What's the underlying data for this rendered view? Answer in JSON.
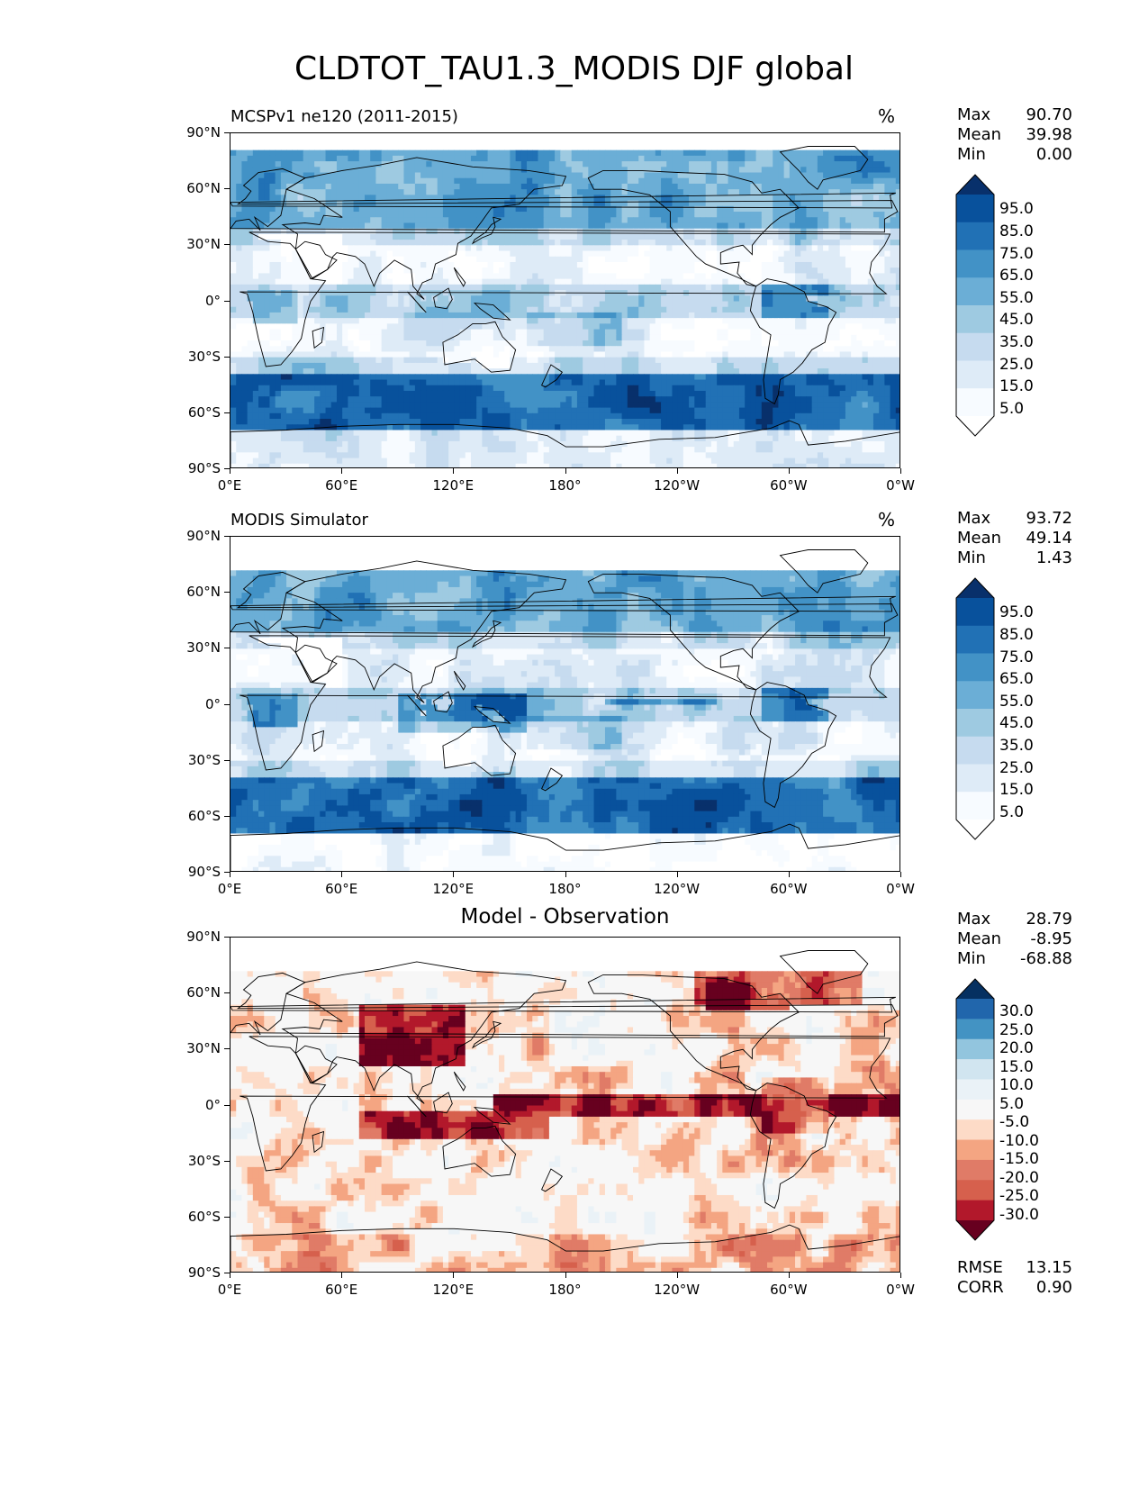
{
  "figure": {
    "title": "CLDTOT_TAU1.3_MODIS DJF global"
  },
  "axes": {
    "lat_ticks": [
      "90°N",
      "60°N",
      "30°N",
      "0°",
      "30°S",
      "60°S",
      "90°S"
    ],
    "lon_ticks": [
      "0°E",
      "60°E",
      "120°E",
      "180°",
      "120°W",
      "60°W",
      "0°W"
    ]
  },
  "panels": [
    {
      "title_left": "MCSPv1 ne120 (2011-2015)",
      "title_right": "%",
      "title_center": "",
      "stats": {
        "max_label": "Max",
        "max": "90.70",
        "mean_label": "Mean",
        "mean": "39.98",
        "min_label": "Min",
        "min": "0.00"
      },
      "colorbar_labels": [
        "95.0",
        "85.0",
        "75.0",
        "65.0",
        "55.0",
        "45.0",
        "35.0",
        "25.0",
        "15.0",
        "5.0"
      ],
      "colormap": "blues"
    },
    {
      "title_left": "MODIS Simulator",
      "title_right": "%",
      "title_center": "",
      "stats": {
        "max_label": "Max",
        "max": "93.72",
        "mean_label": "Mean",
        "mean": "49.14",
        "min_label": "Min",
        "min": "1.43"
      },
      "colorbar_labels": [
        "95.0",
        "85.0",
        "75.0",
        "65.0",
        "55.0",
        "45.0",
        "35.0",
        "25.0",
        "15.0",
        "5.0"
      ],
      "colormap": "blues"
    },
    {
      "title_left": "",
      "title_right": "",
      "title_center": "Model - Observation",
      "stats": {
        "max_label": "Max",
        "max": "28.79",
        "mean_label": "Mean",
        "mean": "-8.95",
        "min_label": "Min",
        "min": "-68.88"
      },
      "colorbar_labels": [
        "30.0",
        "25.0",
        "20.0",
        "15.0",
        "10.0",
        "5.0",
        "-5.0",
        "-10.0",
        "-15.0",
        "-20.0",
        "-25.0",
        "-30.0"
      ],
      "colormap": "rdbu",
      "rmse_label": "RMSE",
      "rmse": "13.15",
      "corr_label": "CORR",
      "corr": "0.90"
    }
  ],
  "colors": {
    "blues": [
      "#08306b",
      "#08519c",
      "#2171b5",
      "#4292c6",
      "#6baed6",
      "#9ecae1",
      "#c6dbef",
      "#deebf7",
      "#f7fbff",
      "#ffffff"
    ],
    "rdbu": [
      "#053061",
      "#2166ac",
      "#4393c3",
      "#92c5de",
      "#d1e5f0",
      "#eaf2f7",
      "#f7f7f7",
      "#fddbc7",
      "#f4a582",
      "#e07b67",
      "#d6604d",
      "#b2182b",
      "#67001f"
    ],
    "coast": "#000000"
  }
}
